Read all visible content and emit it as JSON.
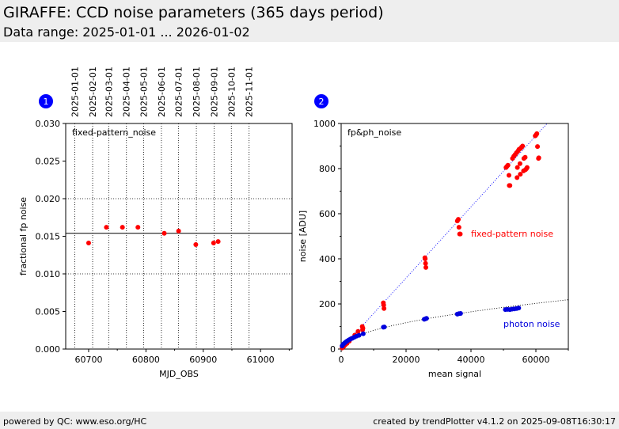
{
  "header": {
    "title": "GIRAFFE: CCD noise parameters (365 days period)",
    "subtitle": "Data range: 2025-01-01 ... 2026-01-02"
  },
  "footer": {
    "left": "powered by QC: www.eso.org/HC",
    "right": "created by trendPlotter v4.1.2 on 2025-09-08T16:30:17"
  },
  "colors": {
    "fixed_pattern": "#ff0000",
    "photon": "#0000dd",
    "badge": "#0000ff"
  },
  "chart_data": [
    {
      "type": "scatter",
      "panel_number": "1",
      "annotation": "fixed-pattern_noise",
      "xlabel": "MJD_OBS",
      "ylabel": "fractional fp noise",
      "xlim": [
        60660,
        61055
      ],
      "ylim": [
        0,
        0.03
      ],
      "x_ticks": [
        60700,
        60800,
        60900,
        61000
      ],
      "y_ticks": [
        "0.000",
        "0.005",
        "0.010",
        "0.015",
        "0.020",
        "0.025",
        "0.030"
      ],
      "grid": true,
      "top_date_axis": [
        {
          "label": "2025-01-01",
          "mjd": 60676
        },
        {
          "label": "2025-02-01",
          "mjd": 60707
        },
        {
          "label": "2025-03-01",
          "mjd": 60735
        },
        {
          "label": "2025-04-01",
          "mjd": 60766
        },
        {
          "label": "2025-05-01",
          "mjd": 60796
        },
        {
          "label": "2025-06-01",
          "mjd": 60827
        },
        {
          "label": "2025-07-01",
          "mjd": 60857
        },
        {
          "label": "2025-08-01",
          "mjd": 60888
        },
        {
          "label": "2025-09-01",
          "mjd": 60919
        },
        {
          "label": "2025-10-01",
          "mjd": 60949
        },
        {
          "label": "2025-11-01",
          "mjd": 60980
        }
      ],
      "reference_line": 0.0154,
      "series": [
        {
          "color": "#ff0000",
          "points": [
            [
              60700,
              0.0141
            ],
            [
              60731,
              0.0162
            ],
            [
              60759,
              0.0162
            ],
            [
              60786,
              0.0162
            ],
            [
              60832,
              0.0154
            ],
            [
              60857,
              0.0157
            ],
            [
              60887,
              0.0139
            ],
            [
              60918,
              0.0141
            ],
            [
              60926,
              0.0143
            ]
          ]
        }
      ]
    },
    {
      "type": "scatter",
      "panel_number": "2",
      "annotation": "fp&ph_noise",
      "xlabel": "mean signal",
      "ylabel": "noise [ADU]",
      "xlim": [
        0,
        70000
      ],
      "ylim": [
        0,
        1000
      ],
      "x_ticks": [
        0,
        20000,
        40000,
        60000
      ],
      "y_ticks": [
        0,
        200,
        400,
        600,
        800,
        1000
      ],
      "grid": false,
      "series": [
        {
          "name": "fixed-pattern noise",
          "color": "#ff0000",
          "fit": {
            "kind": "linear",
            "slope": 0.01576
          },
          "points": [
            [
              300,
              5
            ],
            [
              500,
              8
            ],
            [
              800,
              12
            ],
            [
              1200,
              18
            ],
            [
              1800,
              25
            ],
            [
              2500,
              35
            ],
            [
              3300,
              48
            ],
            [
              4200,
              62
            ],
            [
              5200,
              78
            ],
            [
              6500,
              100
            ],
            [
              6700,
              92
            ],
            [
              6600,
              85
            ],
            [
              13000,
              205
            ],
            [
              13100,
              195
            ],
            [
              13200,
              180
            ],
            [
              25800,
              405
            ],
            [
              25900,
              400
            ],
            [
              26000,
              380
            ],
            [
              26100,
              362
            ],
            [
              35800,
              568
            ],
            [
              36100,
              575
            ],
            [
              36300,
              540
            ],
            [
              36500,
              510
            ],
            [
              36700,
              510
            ],
            [
              50800,
              805
            ],
            [
              51100,
              810
            ],
            [
              51400,
              815
            ],
            [
              51700,
              770
            ],
            [
              51800,
              725
            ],
            [
              52000,
              725
            ],
            [
              52800,
              845
            ],
            [
              53200,
              855
            ],
            [
              53600,
              862
            ],
            [
              54000,
              870
            ],
            [
              54300,
              805
            ],
            [
              54500,
              878
            ],
            [
              54800,
              885
            ],
            [
              54200,
              760
            ],
            [
              55100,
              822
            ],
            [
              55300,
              890
            ],
            [
              55600,
              895
            ],
            [
              55200,
              775
            ],
            [
              55900,
              900
            ],
            [
              56300,
              845
            ],
            [
              56700,
              850
            ],
            [
              56200,
              790
            ],
            [
              56800,
              795
            ],
            [
              57100,
              800
            ],
            [
              57300,
              805
            ],
            [
              59800,
              945
            ],
            [
              60100,
              950
            ],
            [
              60300,
              955
            ],
            [
              60500,
              898
            ],
            [
              60800,
              845
            ],
            [
              60900,
              848
            ]
          ]
        },
        {
          "name": "photon noise",
          "color": "#0000dd",
          "fit": {
            "kind": "sqrt",
            "coeff": 0.8265
          },
          "points": [
            [
              300,
              14
            ],
            [
              500,
              18
            ],
            [
              700,
              22
            ],
            [
              1000,
              26
            ],
            [
              1400,
              31
            ],
            [
              1800,
              35
            ],
            [
              2300,
              40
            ],
            [
              2800,
              44
            ],
            [
              3400,
              48
            ],
            [
              4000,
              52
            ],
            [
              4700,
              57
            ],
            [
              5500,
              61
            ],
            [
              6800,
              68
            ],
            [
              13000,
              97
            ],
            [
              13300,
              98
            ],
            [
              25600,
              132
            ],
            [
              26000,
              134
            ],
            [
              26300,
              136
            ],
            [
              35800,
              155
            ],
            [
              36300,
              157
            ],
            [
              36800,
              158
            ],
            [
              50600,
              175
            ],
            [
              51300,
              176
            ],
            [
              52000,
              175
            ],
            [
              52700,
              177
            ],
            [
              53400,
              178
            ],
            [
              54100,
              180
            ],
            [
              54700,
              182
            ]
          ]
        }
      ]
    }
  ]
}
